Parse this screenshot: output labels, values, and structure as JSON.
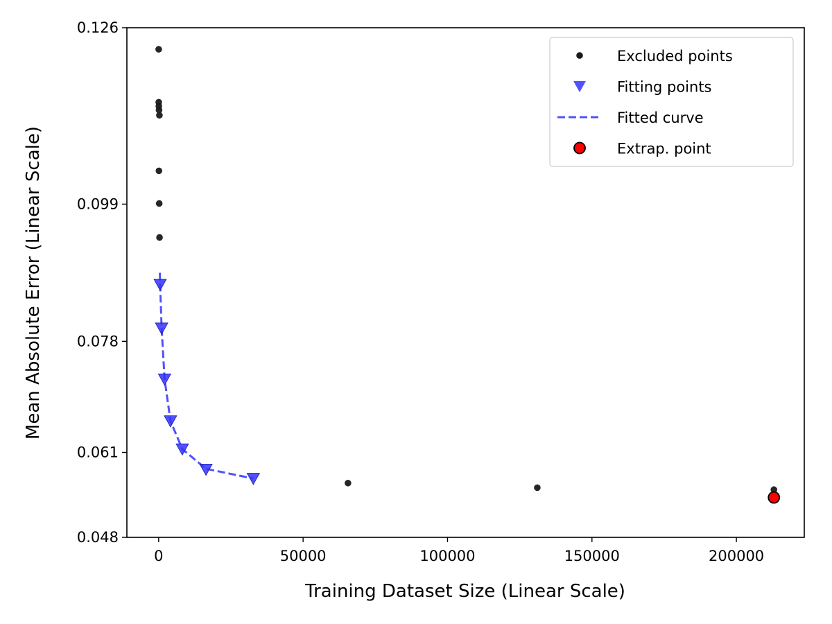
{
  "chart_data": {
    "type": "scatter",
    "title": "",
    "xlabel": "Training Dataset Size (Linear Scale)",
    "ylabel": "Mean Absolute Error (Linear Scale)",
    "xlim": [
      -11000,
      223500
    ],
    "ylim": [
      0.048,
      0.126
    ],
    "x_ticks": [
      0,
      50000,
      100000,
      150000,
      200000
    ],
    "x_tick_labels": [
      "0",
      "50000",
      "100000",
      "150000",
      "200000"
    ],
    "y_ticks": [
      0.048,
      0.061,
      0.078,
      0.099,
      0.126
    ],
    "y_tick_labels": [
      "0.048",
      "0.061",
      "0.078",
      "0.099",
      "0.126"
    ],
    "grid": false,
    "legend_position": "top-right",
    "series": [
      {
        "name": "Excluded points",
        "marker": "dot",
        "color": "#1a1a1a",
        "points": [
          {
            "x": 16,
            "y": 0.1227
          },
          {
            "x": 32,
            "y": 0.1146
          },
          {
            "x": 64,
            "y": 0.114
          },
          {
            "x": 128,
            "y": 0.1134
          },
          {
            "x": 256,
            "y": 0.1126
          },
          {
            "x": 100,
            "y": 0.1041
          },
          {
            "x": 200,
            "y": 0.0991
          },
          {
            "x": 300,
            "y": 0.0939
          },
          {
            "x": 65536,
            "y": 0.0563
          },
          {
            "x": 131072,
            "y": 0.0556
          },
          {
            "x": 212992,
            "y": 0.0553
          }
        ]
      },
      {
        "name": "Fitting points",
        "marker": "triangle-down",
        "color": "#3333ff",
        "points": [
          {
            "x": 512,
            "y": 0.0867
          },
          {
            "x": 1024,
            "y": 0.08
          },
          {
            "x": 2048,
            "y": 0.0722
          },
          {
            "x": 4096,
            "y": 0.0658
          },
          {
            "x": 8192,
            "y": 0.0615
          },
          {
            "x": 16384,
            "y": 0.0584
          },
          {
            "x": 32768,
            "y": 0.057
          }
        ]
      },
      {
        "name": "Fitted curve",
        "style": "dashed",
        "color": "#3333ff",
        "points": [
          {
            "x": 400,
            "y": 0.0885
          },
          {
            "x": 512,
            "y": 0.0867
          },
          {
            "x": 1024,
            "y": 0.08
          },
          {
            "x": 2048,
            "y": 0.0722
          },
          {
            "x": 4096,
            "y": 0.0658
          },
          {
            "x": 8192,
            "y": 0.0615
          },
          {
            "x": 16384,
            "y": 0.0585
          },
          {
            "x": 32768,
            "y": 0.057
          }
        ]
      },
      {
        "name": "Extrap. point",
        "marker": "circle",
        "color": "#ff0000",
        "edge_color": "#000000",
        "points": [
          {
            "x": 212992,
            "y": 0.0541
          }
        ]
      }
    ]
  }
}
